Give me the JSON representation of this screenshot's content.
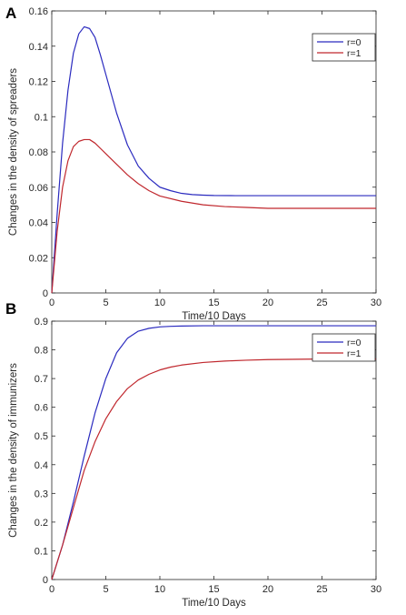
{
  "chart_data": [
    {
      "panel": "A",
      "type": "line",
      "xlabel": "Time/10 Days",
      "ylabel": "Changes in the density of spreaders",
      "xlim": [
        0,
        30
      ],
      "ylim": [
        0,
        0.16
      ],
      "xticks": [
        "0",
        "5",
        "10",
        "15",
        "20",
        "25",
        "30"
      ],
      "yticks": [
        "0",
        "0.02",
        "0.04",
        "0.06",
        "0.08",
        "0.1",
        "0.12",
        "0.14",
        "0.16"
      ],
      "legend_position": "top-right",
      "series": [
        {
          "name": "r=0",
          "color": "#2b2bbf",
          "x": [
            0,
            0.5,
            1,
            1.5,
            2,
            2.5,
            3,
            3.5,
            4,
            4.5,
            5,
            6,
            7,
            8,
            9,
            10,
            11,
            12,
            13,
            14,
            15,
            17,
            20,
            25,
            30
          ],
          "y": [
            0,
            0.045,
            0.085,
            0.115,
            0.136,
            0.147,
            0.151,
            0.15,
            0.145,
            0.135,
            0.124,
            0.102,
            0.084,
            0.072,
            0.065,
            0.06,
            0.058,
            0.0565,
            0.0558,
            0.0555,
            0.0553,
            0.0552,
            0.0552,
            0.0552,
            0.0552
          ]
        },
        {
          "name": "r=1",
          "color": "#c0272d",
          "x": [
            0,
            0.5,
            1,
            1.5,
            2,
            2.5,
            3,
            3.5,
            4,
            4.5,
            5,
            6,
            7,
            8,
            9,
            10,
            12,
            14,
            16,
            18,
            20,
            25,
            30
          ],
          "y": [
            0,
            0.035,
            0.06,
            0.075,
            0.083,
            0.086,
            0.087,
            0.087,
            0.085,
            0.082,
            0.079,
            0.073,
            0.067,
            0.062,
            0.058,
            0.055,
            0.052,
            0.05,
            0.049,
            0.0485,
            0.048,
            0.048,
            0.048
          ]
        }
      ]
    },
    {
      "panel": "B",
      "type": "line",
      "xlabel": "Time/10 Days",
      "ylabel": "Changes in the density of immunizers",
      "xlim": [
        0,
        30
      ],
      "ylim": [
        0,
        0.9
      ],
      "xticks": [
        "0",
        "5",
        "10",
        "15",
        "20",
        "25",
        "30"
      ],
      "yticks": [
        "0",
        "0.1",
        "0.2",
        "0.3",
        "0.4",
        "0.5",
        "0.6",
        "0.7",
        "0.8",
        "0.9"
      ],
      "legend_position": "top-right",
      "series": [
        {
          "name": "r=0",
          "color": "#2b2bbf",
          "x": [
            0,
            1,
            2,
            3,
            4,
            5,
            6,
            7,
            8,
            9,
            10,
            11,
            12,
            14,
            16,
            20,
            25,
            30
          ],
          "y": [
            0,
            0.12,
            0.27,
            0.43,
            0.58,
            0.7,
            0.79,
            0.84,
            0.865,
            0.875,
            0.88,
            0.882,
            0.883,
            0.884,
            0.884,
            0.884,
            0.884,
            0.884
          ]
        },
        {
          "name": "r=1",
          "color": "#c0272d",
          "x": [
            0,
            1,
            2,
            3,
            4,
            5,
            6,
            7,
            8,
            9,
            10,
            11,
            12,
            14,
            16,
            18,
            20,
            25,
            30
          ],
          "y": [
            0,
            0.12,
            0.25,
            0.38,
            0.48,
            0.56,
            0.62,
            0.665,
            0.695,
            0.715,
            0.73,
            0.74,
            0.747,
            0.756,
            0.761,
            0.764,
            0.766,
            0.768,
            0.768
          ]
        }
      ]
    }
  ]
}
